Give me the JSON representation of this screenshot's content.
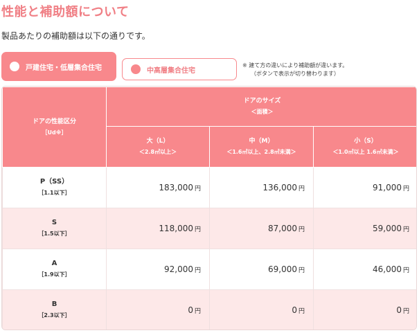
{
  "page": {
    "title": "性能と補助額について",
    "lead": "製品あたりの補助額は以下の通りです。"
  },
  "tabs": [
    {
      "label": "戸建住宅・低層集合住宅",
      "active": true
    },
    {
      "label": "中高層集合住宅",
      "active": false
    }
  ],
  "note": {
    "line1": "※ 建て方の違いにより補助額が違います。",
    "line2": "（ボタンで表示が切り替わります）"
  },
  "table": {
    "row_header": {
      "label": "ドアの性能区分",
      "sub": "［Ud※］"
    },
    "group_header": {
      "label": "ドアのサイズ",
      "sub": "＜面積＞"
    },
    "columns": [
      {
        "label": "大（L）",
        "sub": "＜2.8㎡以上＞"
      },
      {
        "label": "中（M）",
        "sub": "＜1.6㎡以上、2.8㎡未満＞"
      },
      {
        "label": "小（S）",
        "sub": "＜1.0㎡以上 1.6㎡未満＞"
      }
    ],
    "unit": "円",
    "rows": [
      {
        "grade": "P（SS）",
        "range": "［1.1以下］",
        "values": [
          "183,000",
          "136,000",
          "91,000"
        ]
      },
      {
        "grade": "S",
        "range": "［1.5以下］",
        "values": [
          "118,000",
          "87,000",
          "59,000"
        ]
      },
      {
        "grade": "A",
        "range": "［1.9以下］",
        "values": [
          "92,000",
          "69,000",
          "46,000"
        ]
      },
      {
        "grade": "B",
        "range": "［2.3以下］",
        "values": [
          "0",
          "0",
          "0"
        ]
      }
    ]
  },
  "colors": {
    "accent": "#f8888c",
    "title": "#f07f85",
    "row_alt": "#fde8e8"
  }
}
